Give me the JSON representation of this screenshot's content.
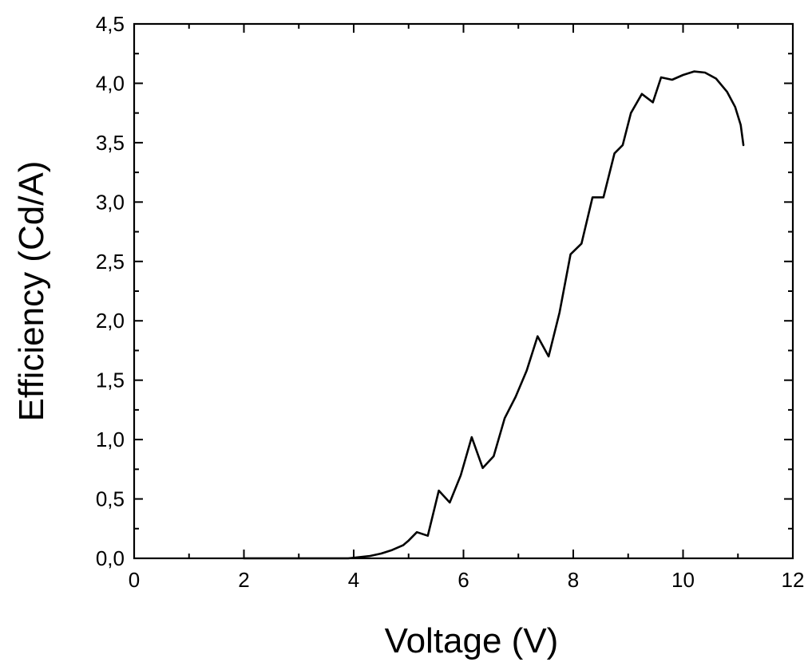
{
  "chart_data": {
    "type": "line",
    "title": "",
    "xlabel": "Voltage (V)",
    "ylabel": "Efficiency (Cd/A)",
    "xlim": [
      0,
      12
    ],
    "ylim": [
      0,
      4.5
    ],
    "x_ticks": [
      0,
      2,
      4,
      6,
      8,
      10,
      12
    ],
    "x_tick_labels": [
      "0",
      "2",
      "4",
      "6",
      "8",
      "10",
      "12"
    ],
    "y_ticks": [
      0,
      0.5,
      1.0,
      1.5,
      2.0,
      2.5,
      3.0,
      3.5,
      4.0,
      4.5
    ],
    "y_tick_labels": [
      "0,0",
      "0,5",
      "1,0",
      "1,5",
      "2,0",
      "2,5",
      "3,0",
      "3,5",
      "4,0",
      "4,5"
    ],
    "minor_ticks_per_interval": 2,
    "grid": false,
    "legend": "none",
    "line_color": "#000000",
    "series": [
      {
        "x": [
          2.0,
          2.5,
          3.0,
          3.5,
          3.9,
          4.1,
          4.3,
          4.5,
          4.7,
          4.9,
          5.0,
          5.15,
          5.35,
          5.55,
          5.75,
          5.95,
          6.15,
          6.35,
          6.55,
          6.75,
          6.95,
          7.15,
          7.35,
          7.55,
          7.75,
          7.95,
          8.15,
          8.35,
          8.55,
          8.75,
          8.9,
          9.05,
          9.25,
          9.45,
          9.6,
          9.8,
          10.0,
          10.2,
          10.4,
          10.6,
          10.8,
          10.95,
          11.05,
          11.1
        ],
        "y": [
          0.0,
          0.0,
          0.0,
          0.0,
          0.0,
          0.01,
          0.02,
          0.04,
          0.07,
          0.11,
          0.15,
          0.22,
          0.19,
          0.57,
          0.47,
          0.7,
          1.02,
          0.76,
          0.86,
          1.18,
          1.36,
          1.58,
          1.87,
          1.7,
          2.07,
          2.56,
          2.65,
          3.04,
          3.04,
          3.41,
          3.48,
          3.75,
          3.91,
          3.84,
          4.05,
          4.03,
          4.07,
          4.1,
          4.09,
          4.04,
          3.93,
          3.8,
          3.65,
          3.48
        ]
      }
    ]
  }
}
